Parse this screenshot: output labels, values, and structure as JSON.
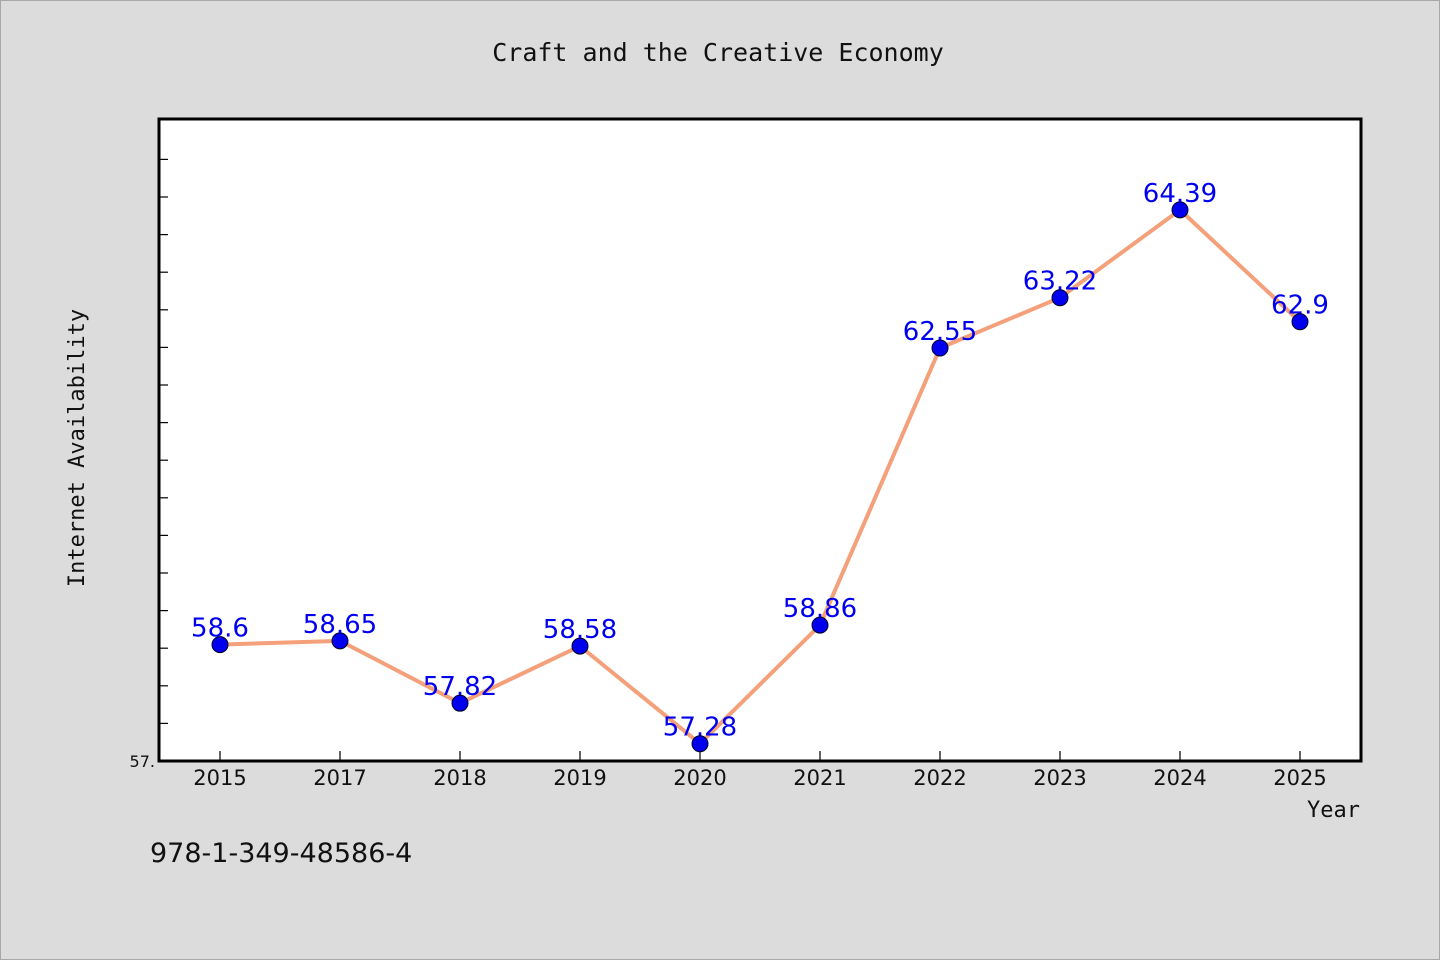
{
  "chart_data": {
    "type": "line",
    "title": "Craft and the Creative Economy",
    "xlabel": "Year",
    "ylabel": "Internet Availability",
    "categories": [
      "2015",
      "2017",
      "2018",
      "2019",
      "2020",
      "2021",
      "2022",
      "2023",
      "2024",
      "2025"
    ],
    "series": [
      {
        "values": [
          58.6,
          58.65,
          57.82,
          58.58,
          57.28,
          58.86,
          62.55,
          63.22,
          64.39,
          62.9
        ],
        "labels": [
          "58.6",
          "58.65",
          "57.82",
          "58.58",
          "57.28",
          "58.86",
          "62.55",
          "63.22",
          "64.39",
          "62.9"
        ]
      }
    ],
    "ylim": [
      57.05,
      65.6
    ],
    "y_tick_labels": [
      "57."
    ],
    "grid": false,
    "colors": {
      "line": "#f4a07a",
      "marker": "#0000ee",
      "label": "#0000ee",
      "plot_background": "#ffffff",
      "page_background": "#dcdcdc"
    }
  },
  "footer": {
    "isbn": "978-1-349-48586-4"
  }
}
